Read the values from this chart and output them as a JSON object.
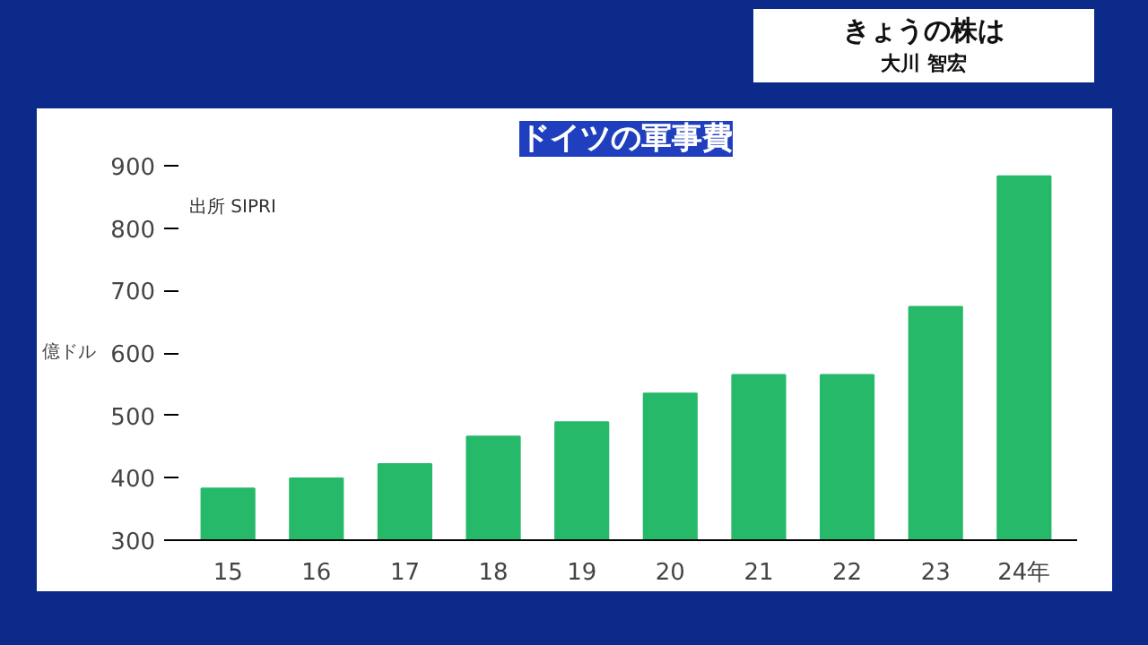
{
  "chart_data": {
    "type": "bar",
    "title": "ドイツの軍事費",
    "ylabel": "億ドル",
    "annotations": [
      "出所 SIPRI",
      "きょうの株は",
      "大川 智宏"
    ],
    "categories": [
      "15",
      "16",
      "17",
      "18",
      "19",
      "20",
      "21",
      "22",
      "23",
      "24年"
    ],
    "values": [
      383,
      399,
      422,
      466,
      489,
      535,
      565,
      565,
      674,
      883
    ],
    "color": "#27b96a",
    "ylim": [
      300,
      900
    ],
    "yticks": [
      300,
      400,
      500,
      600,
      700,
      800,
      900
    ],
    "grid": false
  }
}
